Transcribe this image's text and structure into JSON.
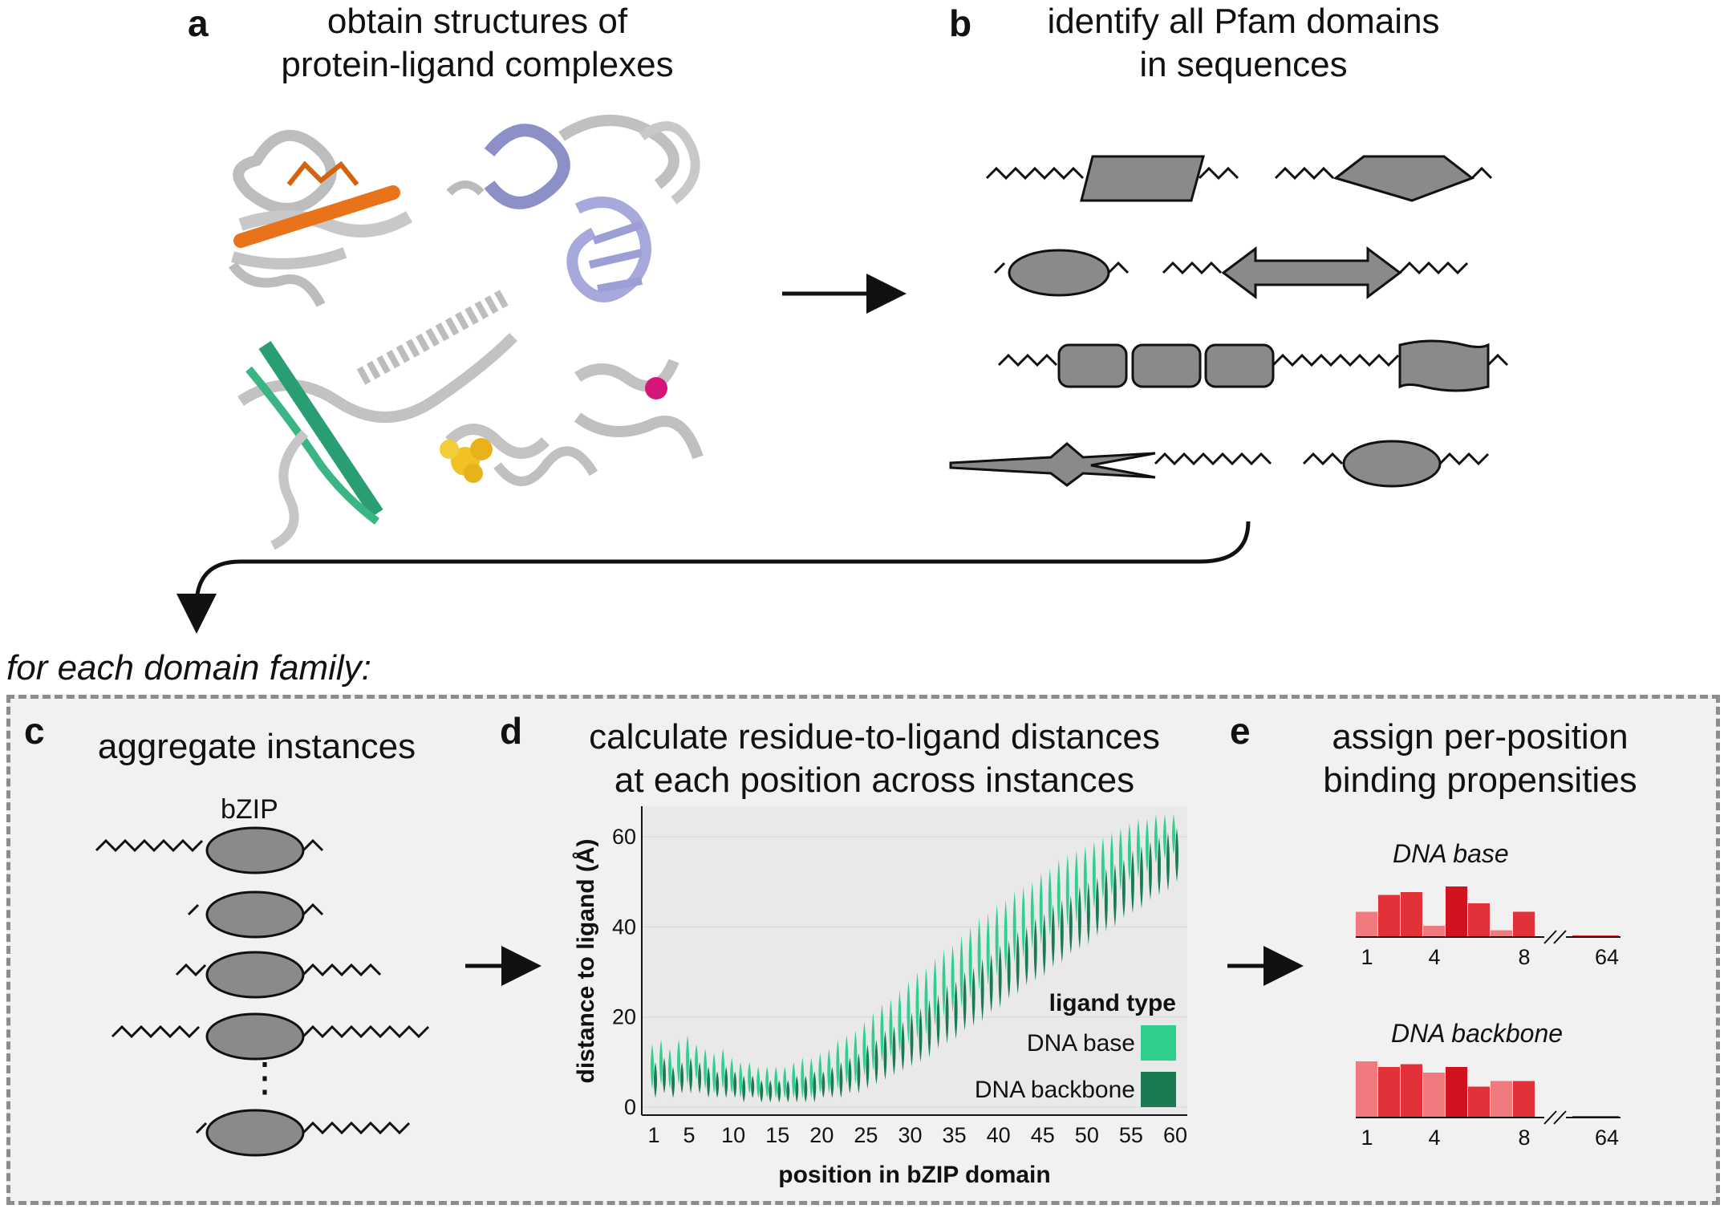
{
  "panel_a": {
    "letter": "a",
    "title_line1": "obtain structures of",
    "title_line2": "protein-ligand complexes"
  },
  "panel_b": {
    "letter": "b",
    "title_line1": "identify all Pfam domains",
    "title_line2": "in sequences"
  },
  "for_each_label": "for each domain family:",
  "panel_c": {
    "letter": "c",
    "title": "aggregate instances",
    "family_label": "bZIP",
    "ellipsis": "⋮"
  },
  "panel_d": {
    "letter": "d",
    "title_line1": "calculate residue-to-ligand distances",
    "title_line2": "at each position across instances"
  },
  "panel_e": {
    "letter": "e",
    "title_line1": "assign per-position",
    "title_line2": "binding propensities",
    "plot1_label": "DNA base",
    "plot2_label": "DNA backbone",
    "x_ticks": [
      "1",
      "4",
      "8",
      "64"
    ]
  },
  "colors": {
    "dna_base": "#2fcf8e",
    "dna_backbone": "#1a7a52",
    "domain_fill": "#8a8a8a",
    "panel_bg": "#f1f1f1",
    "dashed_border": "#8c8c8c",
    "red_dark": "#d1121f",
    "red_mid": "#e3313a",
    "red_light": "#f07a7e"
  },
  "chart_data": [
    {
      "type": "violin",
      "title": "",
      "xlabel": "position in bZIP domain",
      "ylabel": "distance to ligand (Å)",
      "xlim": [
        1,
        60
      ],
      "ylim": [
        0,
        65
      ],
      "x_ticks": [
        1,
        5,
        10,
        15,
        20,
        25,
        30,
        35,
        40,
        45,
        50,
        55,
        60
      ],
      "y_ticks": [
        0,
        20,
        40,
        60
      ],
      "legend_title": "ligand type",
      "legend_position": "right",
      "series": [
        {
          "name": "DNA base",
          "positions": [
            1,
            2,
            3,
            4,
            5,
            6,
            7,
            8,
            9,
            10,
            11,
            12,
            13,
            14,
            15,
            16,
            17,
            18,
            19,
            20,
            21,
            22,
            23,
            24,
            25,
            26,
            27,
            28,
            29,
            30,
            31,
            32,
            33,
            34,
            35,
            36,
            37,
            38,
            39,
            40,
            41,
            42,
            43,
            44,
            45,
            46,
            47,
            48,
            49,
            50,
            51,
            52,
            53,
            54,
            55,
            56,
            57,
            58,
            59,
            60
          ],
          "low": [
            4,
            5,
            4,
            5,
            5,
            6,
            4,
            3,
            4,
            3,
            2,
            3,
            2,
            2,
            2,
            2,
            2,
            2,
            2,
            3,
            3,
            4,
            5,
            5,
            7,
            8,
            10,
            11,
            12,
            14,
            15,
            16,
            18,
            20,
            21,
            22,
            24,
            26,
            27,
            29,
            30,
            32,
            33,
            35,
            36,
            38,
            39,
            40,
            41,
            43,
            44,
            46,
            47,
            48,
            50,
            51,
            52,
            54,
            55,
            56
          ],
          "high": [
            14,
            15,
            13,
            15,
            16,
            14,
            13,
            12,
            13,
            11,
            10,
            10,
            9,
            9,
            9,
            9,
            10,
            11,
            11,
            12,
            13,
            15,
            16,
            17,
            19,
            21,
            23,
            24,
            26,
            28,
            30,
            31,
            33,
            35,
            36,
            38,
            40,
            42,
            43,
            45,
            46,
            48,
            49,
            50,
            52,
            53,
            55,
            56,
            57,
            58,
            59,
            60,
            61,
            62,
            63,
            64,
            64,
            65,
            65,
            65
          ]
        },
        {
          "name": "DNA backbone",
          "positions": [
            1,
            2,
            3,
            4,
            5,
            6,
            7,
            8,
            9,
            10,
            11,
            12,
            13,
            14,
            15,
            16,
            17,
            18,
            19,
            20,
            21,
            22,
            23,
            24,
            25,
            26,
            27,
            28,
            29,
            30,
            31,
            32,
            33,
            34,
            35,
            36,
            37,
            38,
            39,
            40,
            41,
            42,
            43,
            44,
            45,
            46,
            47,
            48,
            49,
            50,
            51,
            52,
            53,
            54,
            55,
            56,
            57,
            58,
            59,
            60
          ],
          "low": [
            2,
            3,
            2,
            3,
            3,
            3,
            2,
            2,
            2,
            2,
            1,
            2,
            1,
            1,
            1,
            1,
            1,
            1,
            1,
            2,
            2,
            2,
            3,
            3,
            4,
            5,
            6,
            7,
            8,
            9,
            10,
            11,
            13,
            14,
            15,
            17,
            18,
            19,
            21,
            22,
            24,
            25,
            27,
            28,
            29,
            31,
            32,
            34,
            35,
            36,
            38,
            39,
            40,
            42,
            43,
            44,
            46,
            47,
            48,
            50
          ],
          "high": [
            10,
            11,
            9,
            10,
            11,
            10,
            9,
            8,
            9,
            8,
            7,
            7,
            6,
            6,
            6,
            6,
            7,
            7,
            8,
            8,
            9,
            10,
            11,
            12,
            14,
            15,
            17,
            18,
            19,
            21,
            22,
            24,
            25,
            27,
            28,
            30,
            31,
            33,
            34,
            36,
            37,
            39,
            40,
            42,
            43,
            45,
            46,
            47,
            49,
            50,
            51,
            53,
            54,
            55,
            57,
            58,
            59,
            60,
            61,
            62
          ]
        }
      ]
    },
    {
      "type": "bar",
      "title": "DNA base",
      "categories": [
        "1",
        "2",
        "3",
        "4",
        "5",
        "6",
        "7",
        "8",
        "64"
      ],
      "values": [
        0.45,
        0.75,
        0.8,
        0.2,
        0.9,
        0.6,
        0.12,
        0.45,
        0.02
      ],
      "x_ticks": [
        "1",
        "4",
        "8",
        "64"
      ]
    },
    {
      "type": "bar",
      "title": "DNA backbone",
      "categories": [
        "1",
        "2",
        "3",
        "4",
        "5",
        "6",
        "7",
        "8",
        "64"
      ],
      "values": [
        1.0,
        0.9,
        0.95,
        0.8,
        0.9,
        0.55,
        0.65,
        0.65,
        0.02
      ],
      "x_ticks": [
        "1",
        "4",
        "8",
        "64"
      ]
    }
  ]
}
